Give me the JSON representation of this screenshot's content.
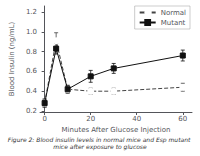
{
  "chart_data": {
    "type": "line",
    "caption": "Figure 2: Blood insulin levels in normal mice and Esp mutant mice after exposure to glucose",
    "xlabel": "Minutes After Glucose Injection",
    "ylabel": "Blood Insulin (ng/mL)",
    "x": [
      0,
      5,
      10,
      20,
      30,
      60
    ],
    "series": [
      {
        "name": "Normal",
        "color": "#444444",
        "marker": "open_circle",
        "line_style": "dashed",
        "values": [
          0.28,
          0.91,
          0.42,
          0.4,
          0.4,
          0.44
        ],
        "yerr": [
          0.04,
          0.08,
          0.035,
          0.03,
          0.03,
          0.04
        ]
      },
      {
        "name": "Mutant",
        "color": "#111111",
        "marker": "square",
        "line_style": "solid",
        "values": [
          0.28,
          0.83,
          0.42,
          0.55,
          0.63,
          0.76
        ],
        "yerr": [
          0.04,
          0.055,
          0.04,
          0.06,
          0.05,
          0.055
        ]
      }
    ],
    "xlim": [
      -2,
      64
    ],
    "ylim": [
      0.19,
      1.26
    ],
    "xticks": [
      0,
      20,
      40,
      60
    ],
    "yticks": [
      0.2,
      0.4,
      0.6,
      0.8,
      {
        "value": 1,
        "label": "1.0"
      },
      1.2
    ],
    "grid": false,
    "legend": "upper right"
  }
}
